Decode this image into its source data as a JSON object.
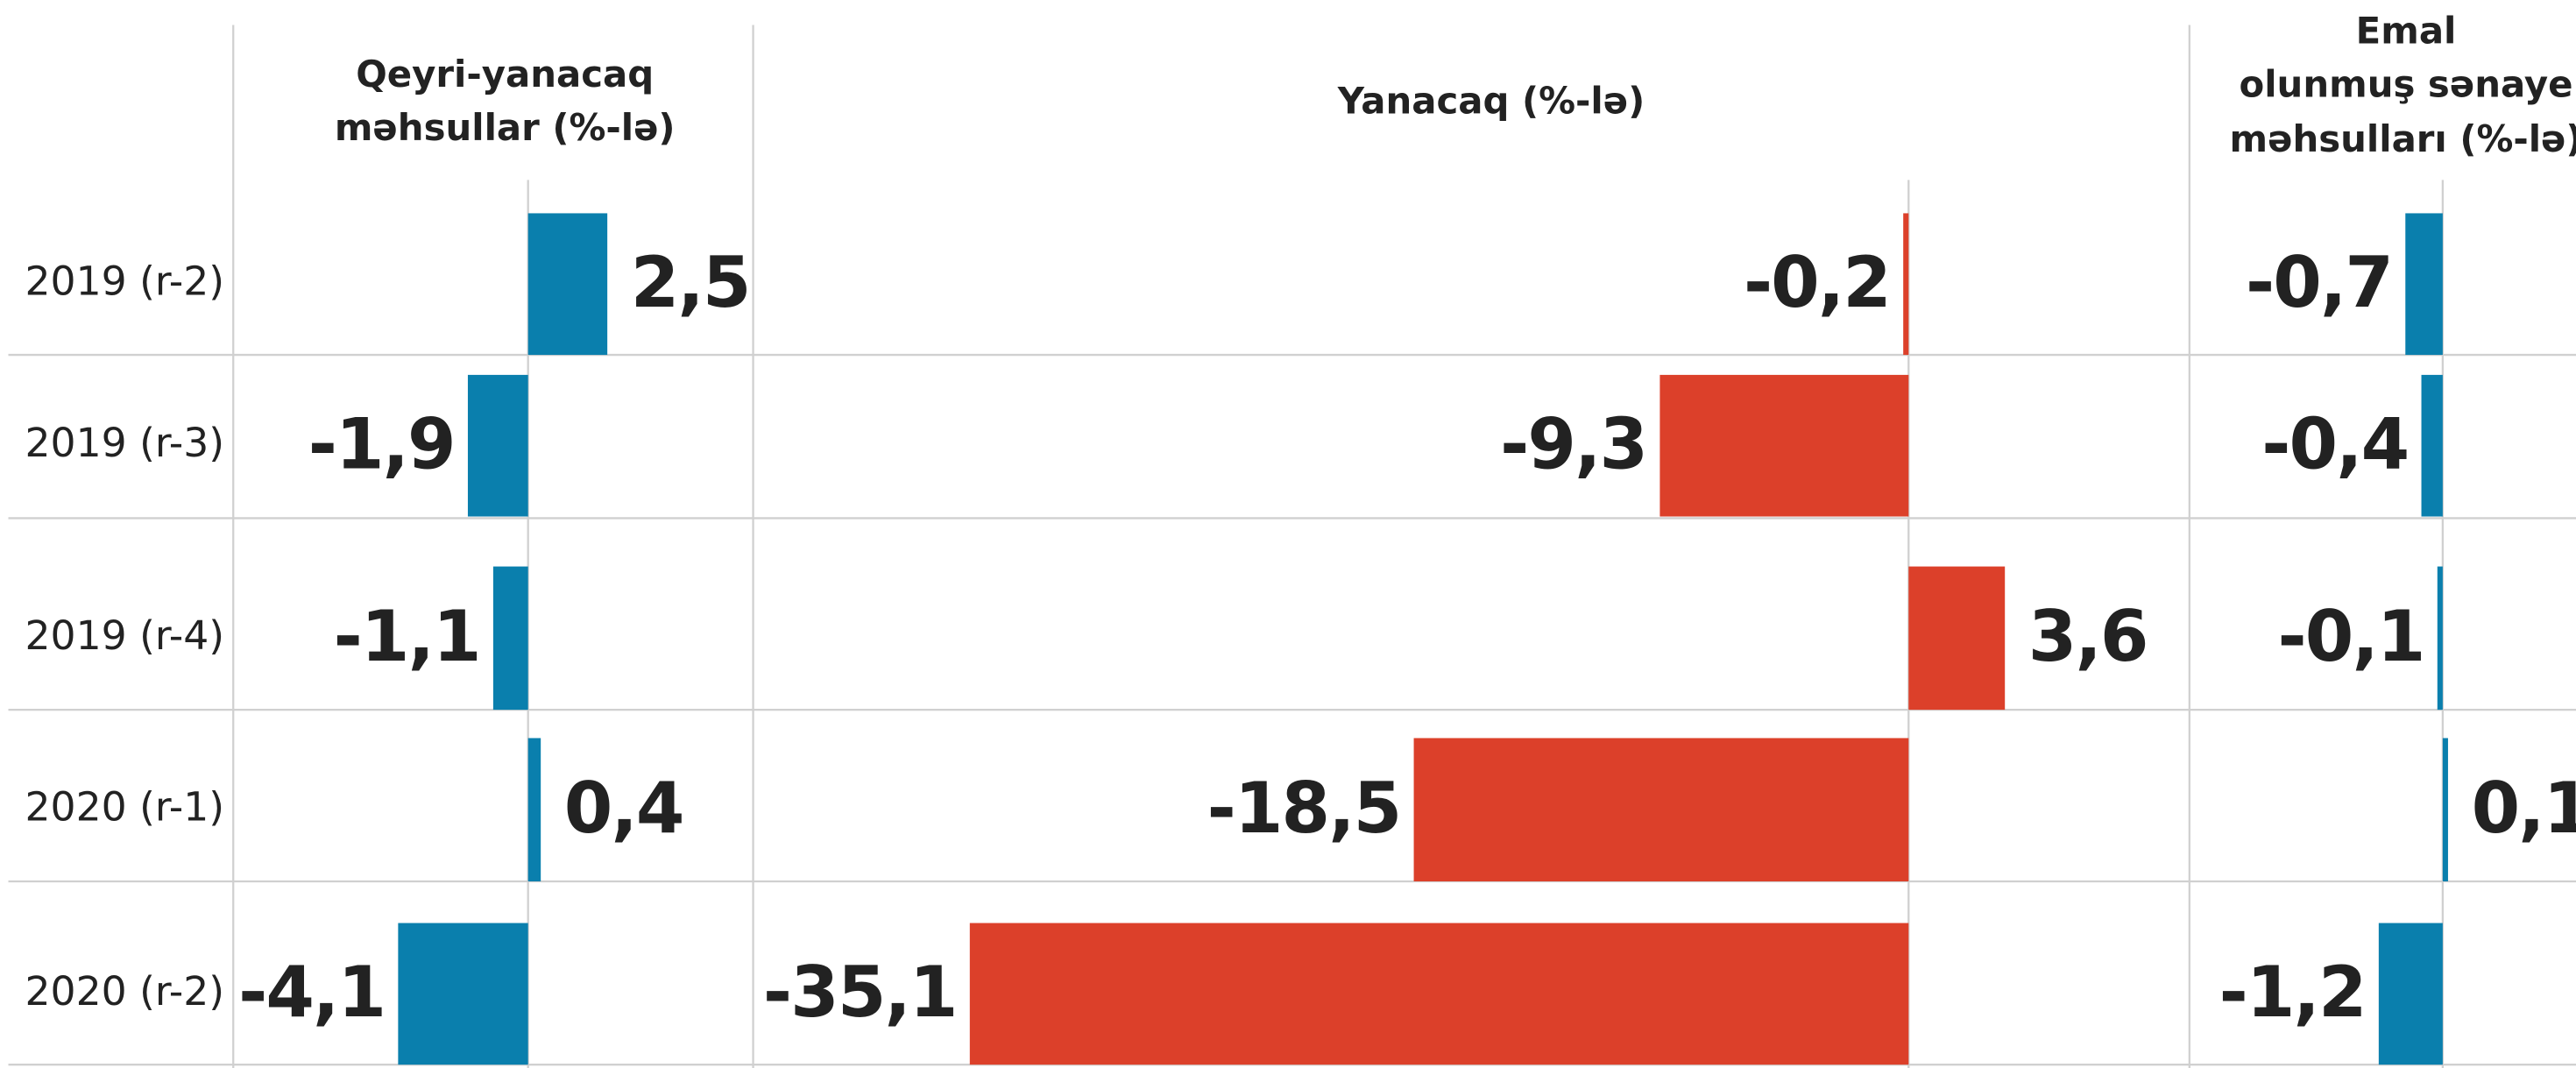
{
  "chart_data": [
    {
      "type": "bar",
      "title": [
        "Qeyri-yanacaq",
        "məhsullar (%-lə)"
      ],
      "categories": [
        "2019 (r-2)",
        "2019 (r-3)",
        "2019 (r-4)",
        "2020 (r-1)",
        "2020 (r-2)"
      ],
      "values": [
        2.5,
        -1.9,
        -1.1,
        0.4,
        -4.1
      ],
      "value_labels": [
        "2,5",
        "-1,9",
        "-1,1",
        "0,4",
        "-4,1"
      ],
      "color": "#0a7fad",
      "xlim": [
        -9.3,
        7.1
      ]
    },
    {
      "type": "bar",
      "title": [
        "Yanacaq (%-lə)"
      ],
      "values": [
        -0.2,
        -9.3,
        3.6,
        -18.5,
        -35.1
      ],
      "value_labels": [
        "-0,2",
        "-9,3",
        "3,6",
        "-18,5",
        "-35,1"
      ],
      "color": "#dc402a",
      "xlim": [
        -43.2,
        10.5
      ]
    },
    {
      "type": "bar",
      "title": [
        "Emal",
        "olunmuş sənaye",
        "məhsulları (%-lə)"
      ],
      "values": [
        -0.7,
        -0.4,
        -0.1,
        0.1,
        -1.2
      ],
      "value_labels": [
        "-0,7",
        "-0,4",
        "-0,1",
        "0,1",
        "-1,2"
      ],
      "color": "#0a7fad",
      "xlim": [
        -4.75,
        2.5
      ]
    }
  ]
}
